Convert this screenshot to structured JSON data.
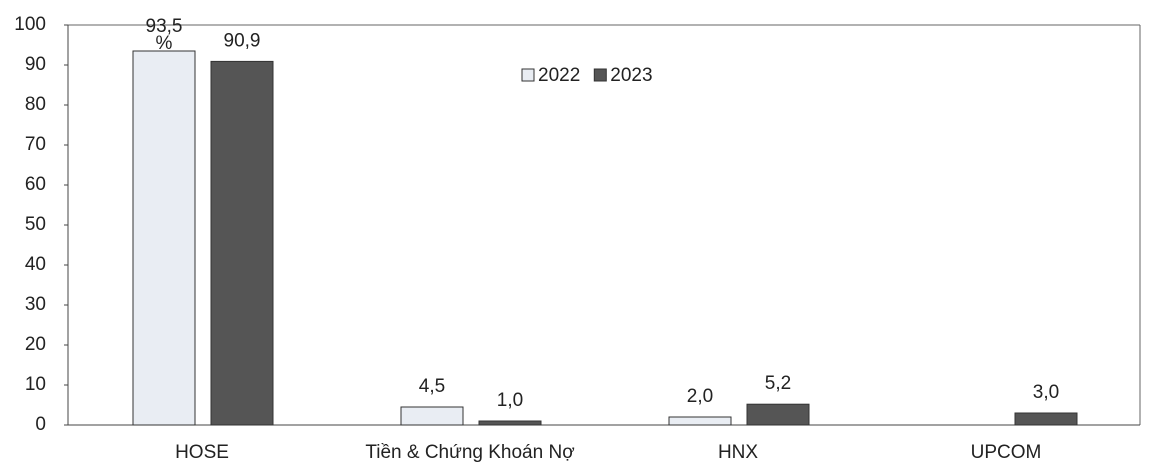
{
  "chart_data": {
    "type": "bar",
    "categories": [
      "HOSE",
      "Tiền & Chứng Khoán Nợ",
      "HNX",
      "UPCOM"
    ],
    "series": [
      {
        "name": "2022",
        "color": "#e9edf3",
        "values": [
          93.5,
          4.5,
          2.0,
          null
        ],
        "value_labels": [
          "93,5 %",
          "4,5",
          "2,0",
          null
        ]
      },
      {
        "name": "2023",
        "color": "#555555",
        "values": [
          90.9,
          1.0,
          5.2,
          3.0
        ],
        "value_labels": [
          "90,9",
          "1,0",
          "5,2",
          "3,0"
        ]
      }
    ],
    "ylim": [
      0,
      100
    ],
    "yticks": [
      0,
      10,
      20,
      30,
      40,
      50,
      60,
      70,
      80,
      90,
      100
    ],
    "grid": false,
    "legend": "top"
  }
}
